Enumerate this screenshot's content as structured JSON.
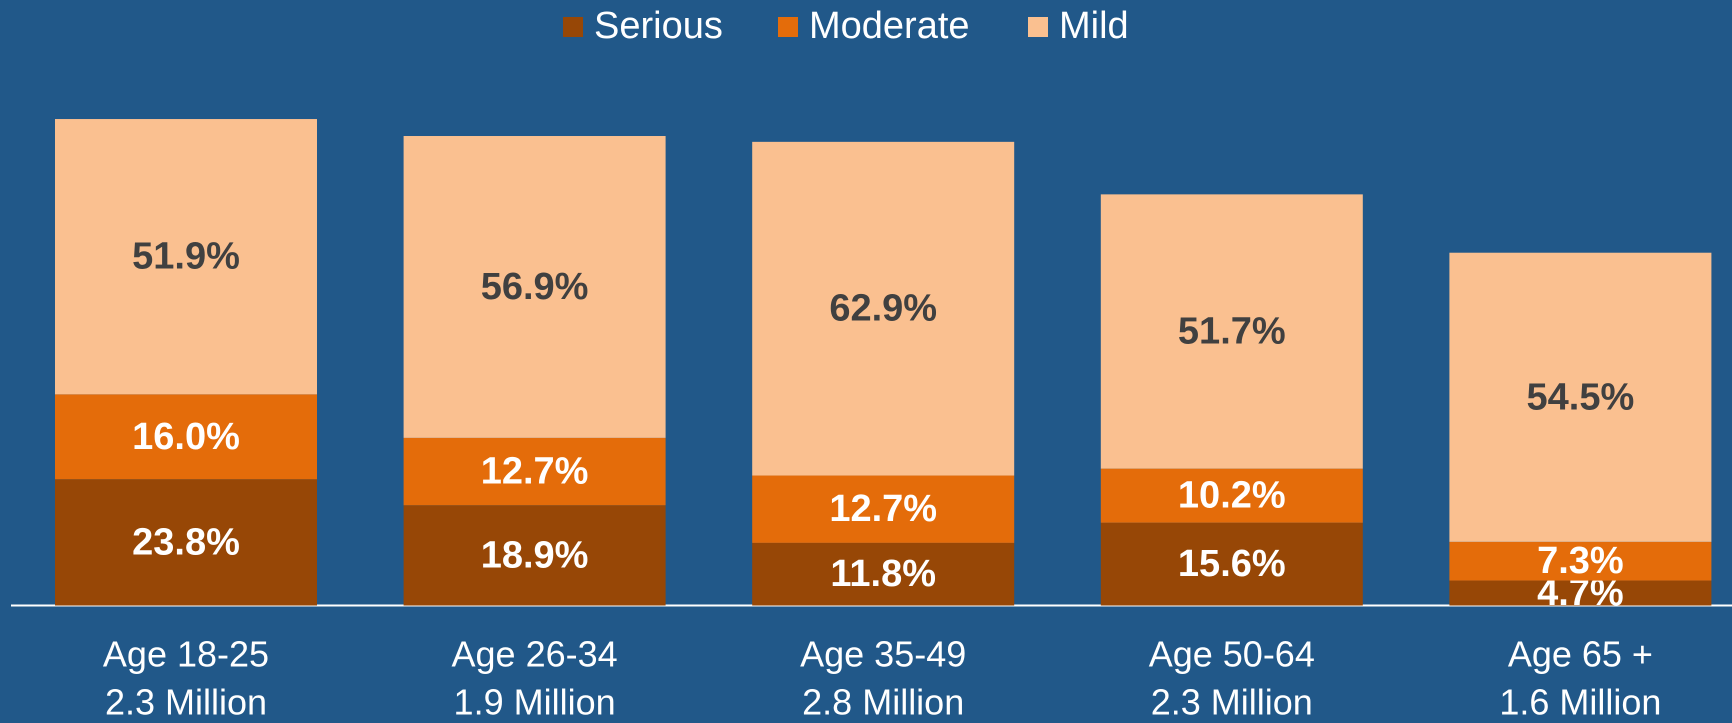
{
  "chart_data": {
    "type": "stacked_bar",
    "categories": [
      "Age 18-25",
      "Age 26-34",
      "Age 35-49",
      "Age 50-64",
      "Age 65 +"
    ],
    "category_sublabels": [
      "2.3 Million",
      "1.9 Million",
      "2.8 Million",
      "2.3 Million",
      "1.6 Million"
    ],
    "series": [
      {
        "name": "Serious",
        "color": "#974706",
        "values": [
          23.8,
          18.9,
          11.8,
          15.6,
          4.7
        ]
      },
      {
        "name": "Moderate",
        "color": "#e46c0a",
        "values": [
          16.0,
          12.7,
          12.7,
          10.2,
          7.3
        ]
      },
      {
        "name": "Mild",
        "color": "#fac090",
        "values": [
          51.9,
          56.9,
          62.9,
          51.7,
          54.5
        ]
      }
    ],
    "value_labels": [
      [
        "23.8%",
        "18.9%",
        "11.8%",
        "15.6%",
        "4.7%"
      ],
      [
        "16.0%",
        "12.7%",
        "12.7%",
        "10.2%",
        "7.3%"
      ],
      [
        "51.9%",
        "56.9%",
        "62.9%",
        "51.7%",
        "54.5%"
      ]
    ],
    "ylim": [
      0,
      100
    ],
    "legend": "top"
  }
}
